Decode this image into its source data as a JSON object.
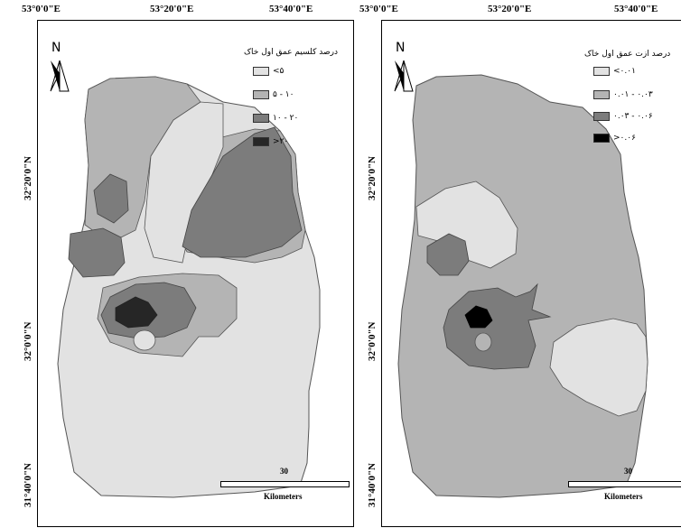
{
  "top_labels": [
    "53°0'0\"E",
    "53°20'0\"E",
    "53°40'0\"E"
  ],
  "left_labels": [
    "32°20'0\"N",
    "32°0'0\"N",
    "31°40'0\"N"
  ],
  "north": "N",
  "colors": {
    "very_light": "#e2e2e2",
    "light": "#b4b4b4",
    "medium": "#7c7c7c",
    "dark": "#262626",
    "black": "#000000"
  },
  "left_map": {
    "legend_title": "درصد کلسیم عمق اول خاک",
    "legend": [
      {
        "label": "<۵",
        "color": "#e2e2e2"
      },
      {
        "label": "۵ - ۱۰",
        "color": "#b4b4b4"
      },
      {
        "label": "۱۰ - ۲۰",
        "color": "#7c7c7c"
      },
      {
        "label": ">۲۰",
        "color": "#262626"
      }
    ],
    "scale_number": "30",
    "scale_unit": "Kilometers"
  },
  "right_map": {
    "legend_title": "درصد ازت عمق اول خاک",
    "legend": [
      {
        "label": "<۰.۰۱",
        "color": "#e2e2e2"
      },
      {
        "label": "۰.۰۱ - ۰.۰۳",
        "color": "#b4b4b4"
      },
      {
        "label": "۰.۰۳ - ۰.۰۶",
        "color": "#7c7c7c"
      },
      {
        "label": ">۰.۰۶",
        "color": "#000000"
      }
    ],
    "scale_number": "30",
    "scale_unit": "Kilometers"
  }
}
